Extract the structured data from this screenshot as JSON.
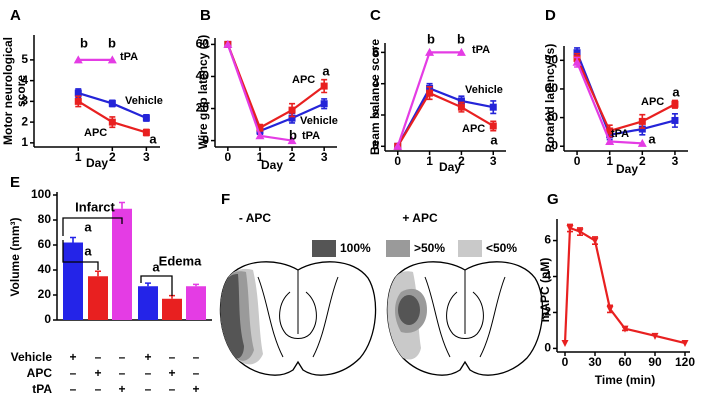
{
  "chart_data": [
    {
      "type": "line",
      "label": "A",
      "ylabel": [
        "Motor neurological",
        "score"
      ],
      "xlabel": "Day",
      "x": [
        1,
        2,
        3
      ],
      "xlim": [
        -0.3,
        3.4
      ],
      "xticks": [
        1,
        2,
        3
      ],
      "ylim": [
        0.8,
        6.2
      ],
      "yticks": [
        1,
        2,
        3,
        4,
        5
      ],
      "series": [
        {
          "name": "Vehicle",
          "color": "#2424d8",
          "marker": "square",
          "values": [
            3.4,
            2.9,
            2.2
          ],
          "errors": [
            0.2,
            0.15,
            0.15
          ]
        },
        {
          "name": "APC",
          "color": "#e82020",
          "marker": "square",
          "values": [
            3.0,
            2.0,
            1.5
          ],
          "errors": [
            0.25,
            0.25,
            0.15
          ]
        },
        {
          "name": "tPA",
          "color": "#e43ce4",
          "marker": "triangle",
          "values": [
            5,
            5,
            null
          ]
        }
      ],
      "annotations": [
        "b",
        "b",
        "a"
      ]
    },
    {
      "type": "line",
      "label": "B",
      "ylabel": "Wire grip latency (s)",
      "xlabel": "Day",
      "x": [
        0,
        1,
        2,
        3
      ],
      "xlim": [
        -0.4,
        3.4
      ],
      "xticks": [
        0,
        1,
        2,
        3
      ],
      "ylim": [
        -4,
        64
      ],
      "yticks": [
        0,
        20,
        40,
        60
      ],
      "series": [
        {
          "name": "Vehicle",
          "color": "#2424d8",
          "marker": "square",
          "values": [
            60,
            6,
            14,
            23
          ],
          "errors": [
            null,
            2,
            3,
            3
          ]
        },
        {
          "name": "APC",
          "color": "#e82020",
          "marker": "square",
          "values": [
            60,
            8,
            19,
            34
          ],
          "errors": [
            null,
            2,
            4,
            4
          ]
        },
        {
          "name": "tPA",
          "color": "#e43ce4",
          "marker": "triangle",
          "values": [
            60,
            3,
            0,
            null
          ]
        }
      ],
      "annotations": [
        "a",
        "b"
      ]
    },
    {
      "type": "line",
      "label": "C",
      "ylabel": "Beam balance score",
      "xlabel": "Day",
      "x": [
        0,
        1,
        2,
        3
      ],
      "xlim": [
        -0.4,
        3.4
      ],
      "xticks": [
        0,
        1,
        2,
        3
      ],
      "ylim": [
        -0.3,
        6.6
      ],
      "yticks": [
        0,
        2,
        4,
        6
      ],
      "series": [
        {
          "name": "Vehicle",
          "color": "#2424d8",
          "marker": "square",
          "values": [
            0,
            3.7,
            2.9,
            2.5
          ],
          "errors": [
            null,
            0.3,
            0.3,
            0.4
          ]
        },
        {
          "name": "APC",
          "color": "#e82020",
          "marker": "square",
          "values": [
            0,
            3.4,
            2.5,
            1.3
          ],
          "errors": [
            null,
            0.4,
            0.3,
            0.3
          ]
        },
        {
          "name": "tPA",
          "color": "#e43ce4",
          "marker": "triangle",
          "values": [
            0,
            6,
            6,
            null
          ]
        }
      ],
      "annotations": [
        "b",
        "b",
        "a"
      ]
    },
    {
      "type": "line",
      "label": "D",
      "ylabel": "Rotarod latency (s)",
      "xlabel": "Day",
      "x": [
        0,
        1,
        2,
        3
      ],
      "xlim": [
        -0.4,
        3.4
      ],
      "xticks": [
        0,
        1,
        2,
        3
      ],
      "ylim": [
        -5,
        105
      ],
      "yticks": [
        0,
        30,
        60,
        90
      ],
      "series": [
        {
          "color": "#2424d8",
          "marker": "square",
          "values": [
            98,
            12,
            18,
            27
          ],
          "errors": [
            5,
            5,
            6,
            7
          ]
        },
        {
          "name": "APC",
          "color": "#e82020",
          "marker": "square",
          "values": [
            92,
            16,
            26,
            44
          ],
          "errors": [
            5,
            6,
            7,
            4
          ]
        },
        {
          "name": "tPA",
          "color": "#e43ce4",
          "marker": "triangle",
          "values": [
            88,
            5,
            3,
            null
          ],
          "errors": [
            5,
            null,
            null,
            null
          ]
        }
      ],
      "annotations": [
        "a",
        "a"
      ]
    },
    {
      "type": "bar",
      "label": "E",
      "ylabel": "Volume (mm³)",
      "ylim": [
        0,
        100
      ],
      "yticks": [
        0,
        20,
        40,
        60,
        80,
        100
      ],
      "values": [
        62,
        35,
        89,
        27,
        17,
        27
      ],
      "errors": [
        4,
        4,
        5,
        2.5,
        2.5,
        1.5
      ],
      "colors": [
        "#2424e8",
        "#e82020",
        "#e43ce4",
        "#2424e8",
        "#e82020",
        "#e43ce4"
      ],
      "group_labels": [
        "Infarct",
        "Edema"
      ],
      "annotations": [
        "a",
        "a",
        "a"
      ],
      "table": {
        "rows": [
          "Vehicle",
          "APC",
          "tPA"
        ],
        "cells": [
          [
            "+",
            "–",
            "–",
            "+",
            "–",
            "–"
          ],
          [
            "–",
            "+",
            "–",
            "–",
            "+",
            "–"
          ],
          [
            "–",
            "–",
            "+",
            "–",
            "–",
            "+"
          ]
        ]
      }
    },
    {
      "type": "line",
      "label": "G",
      "ylabel": "mAPC (nM)",
      "xlabel": "Time (min)",
      "x": [
        0,
        5,
        15,
        30,
        45,
        60,
        90,
        120
      ],
      "xlim": [
        -8,
        125
      ],
      "xticks": [
        0,
        30,
        60,
        90,
        120
      ],
      "ylim": [
        -0.2,
        7.2
      ],
      "yticks": [
        0,
        2,
        4,
        6
      ],
      "series": [
        {
          "color": "#e82020",
          "marker": "triangle-down",
          "values": [
            0.3,
            6.7,
            6.5,
            6.0,
            2.2,
            1.1,
            0.7,
            0.3
          ],
          "errors": [
            null,
            0.2,
            0.2,
            0.2,
            0.2,
            0.1,
            null,
            null
          ]
        }
      ]
    }
  ],
  "panel_f": {
    "label": "F",
    "titles": [
      "- APC",
      "+ APC"
    ],
    "legend": [
      "100%",
      ">50%",
      "<50%"
    ]
  }
}
